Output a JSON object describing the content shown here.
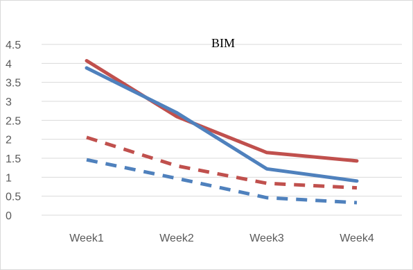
{
  "chart_data": {
    "type": "line",
    "title": "BIM",
    "xlabel": "",
    "ylabel": "",
    "categories": [
      "Week1",
      "Week2",
      "Week3",
      "Week4"
    ],
    "ylim": [
      0,
      4.5
    ],
    "yticks": [
      "0",
      "0.5",
      "1",
      "1.5",
      "2",
      "2.5",
      "3",
      "3.5",
      "4",
      "4.5"
    ],
    "grid": true,
    "legend": "none",
    "series": [
      {
        "values": [
          4.07,
          2.6,
          1.65,
          1.43
        ],
        "color": "#c0504d",
        "style": "solid"
      },
      {
        "values": [
          3.88,
          2.7,
          1.22,
          0.9
        ],
        "color": "#4f81bd",
        "style": "solid"
      },
      {
        "values": [
          2.05,
          1.3,
          0.84,
          0.72
        ],
        "color": "#c0504d",
        "style": "dashed"
      },
      {
        "values": [
          1.46,
          0.97,
          0.46,
          0.33
        ],
        "color": "#4f81bd",
        "style": "dashed"
      }
    ]
  }
}
